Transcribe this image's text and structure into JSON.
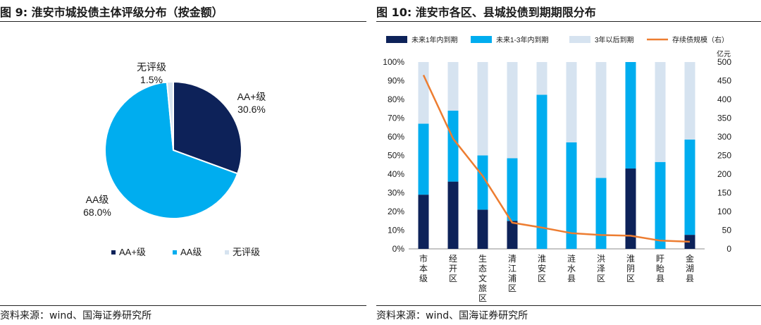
{
  "left": {
    "title": "图 9:  淮安市城投债主体评级分布（按金额）",
    "source": "资料来源：wind、国海证券研究所",
    "chart_data": {
      "type": "pie",
      "title": "淮安市城投债主体评级分布（按金额）",
      "slices": [
        {
          "name": "AA+级",
          "value": 30.6,
          "label": "30.6%",
          "color": "#0d2259"
        },
        {
          "name": "AA级",
          "value": 68.0,
          "label": "68.0%",
          "color": "#00adef"
        },
        {
          "name": "无评级",
          "value": 1.5,
          "label": "1.5%",
          "color": "#d6e3f0"
        }
      ],
      "legend": [
        "AA+级",
        "AA级",
        "无评级"
      ],
      "legend_position": "bottom"
    }
  },
  "right": {
    "title": "图 10:  淮安市各区、县城投债到期期限分布",
    "source": "资料来源：wind、国海证券研究所",
    "chart_data": {
      "type": "bar",
      "stacked": true,
      "title": "淮安市各区、县城投债到期期限分布",
      "categories": [
        "市本级",
        "经开区",
        "生态文旅区",
        "清江浦区",
        "淮安区",
        "涟水县",
        "洪泽区",
        "淮阴区",
        "盱眙县",
        "金湖县"
      ],
      "series": [
        {
          "name": "未来1年内到期",
          "type": "bar",
          "axis": "left",
          "color": "#0d2259",
          "values": [
            29,
            36,
            21,
            15,
            0,
            0,
            0,
            43,
            0,
            7.5
          ]
        },
        {
          "name": "未来1-3年内到期",
          "type": "bar",
          "axis": "left",
          "color": "#00adef",
          "values": [
            38,
            38,
            29,
            33.5,
            82.5,
            57,
            38,
            57,
            46.5,
            51
          ]
        },
        {
          "name": "3年以后到期",
          "type": "bar",
          "axis": "left",
          "color": "#d6e3f0",
          "values": [
            33,
            26,
            50,
            51.5,
            17.5,
            43,
            62,
            0,
            53.5,
            41.5
          ]
        },
        {
          "name": "存续债规模（右）",
          "type": "line",
          "axis": "right",
          "color": "#ed7d31",
          "values": [
            465,
            295,
            195,
            70,
            57,
            42,
            37,
            35,
            22,
            19
          ]
        }
      ],
      "y_left": {
        "min": 0,
        "max": 100,
        "ticks": [
          "0%",
          "10%",
          "20%",
          "30%",
          "40%",
          "50%",
          "60%",
          "70%",
          "80%",
          "90%",
          "100%"
        ]
      },
      "y_right": {
        "min": 0,
        "max": 500,
        "unit": "亿元",
        "ticks": [
          "0",
          "50",
          "100",
          "150",
          "200",
          "250",
          "300",
          "350",
          "400",
          "450",
          "500"
        ]
      },
      "legend_position": "top"
    }
  }
}
